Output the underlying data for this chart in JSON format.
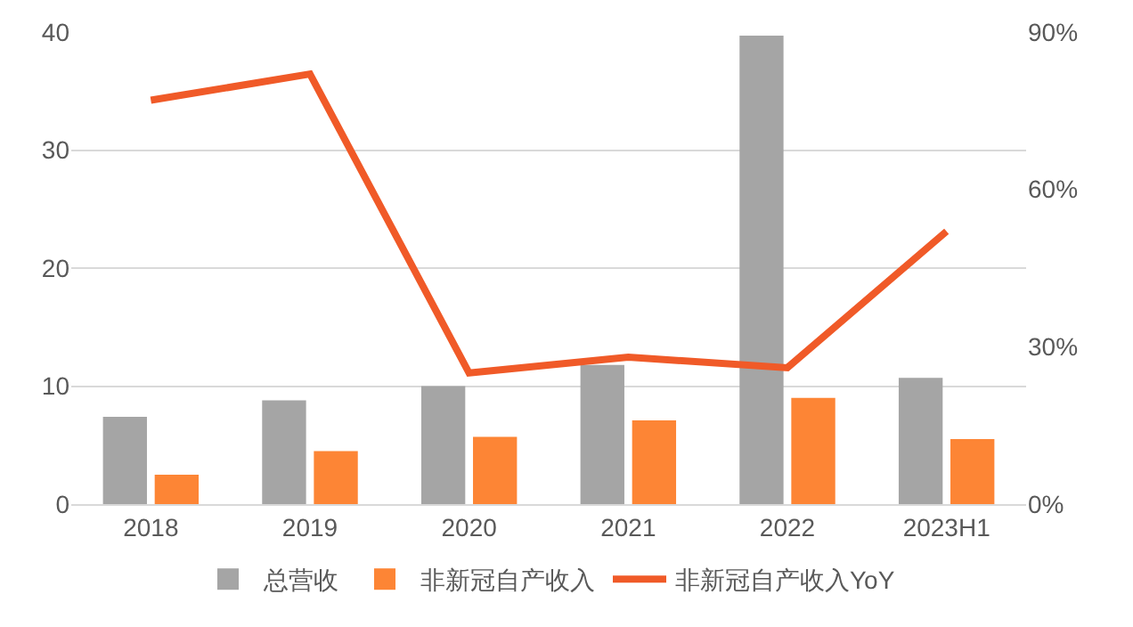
{
  "chart_data": {
    "type": "bar",
    "categories": [
      "2018",
      "2019",
      "2020",
      "2021",
      "2022",
      "2023H1"
    ],
    "series": [
      {
        "name": "总营收",
        "color": "#a5a5a5",
        "values": [
          7.4,
          8.8,
          10.0,
          11.8,
          39.7,
          10.7
        ]
      },
      {
        "name": "非新冠自产收入",
        "color": "#fd8535",
        "values": [
          2.5,
          4.5,
          5.7,
          7.1,
          9.0,
          5.5
        ]
      },
      {
        "name": "非新冠自产收入YoY",
        "type": "line",
        "axis": "y2",
        "color": "#f05a28",
        "values": [
          77,
          82,
          25,
          28,
          26,
          52
        ]
      }
    ],
    "ylim": [
      0,
      40
    ],
    "yticks": [
      0,
      10,
      20,
      30,
      40
    ],
    "y2lim": [
      0,
      90
    ],
    "y2ticks": [
      {
        "value": 0,
        "label": "0%"
      },
      {
        "value": 30,
        "label": "30%"
      },
      {
        "value": 60,
        "label": "60%"
      },
      {
        "value": 90,
        "label": "90%"
      }
    ],
    "grid": "y",
    "legend": "bottom",
    "line_style": "solid",
    "marker": "none"
  }
}
